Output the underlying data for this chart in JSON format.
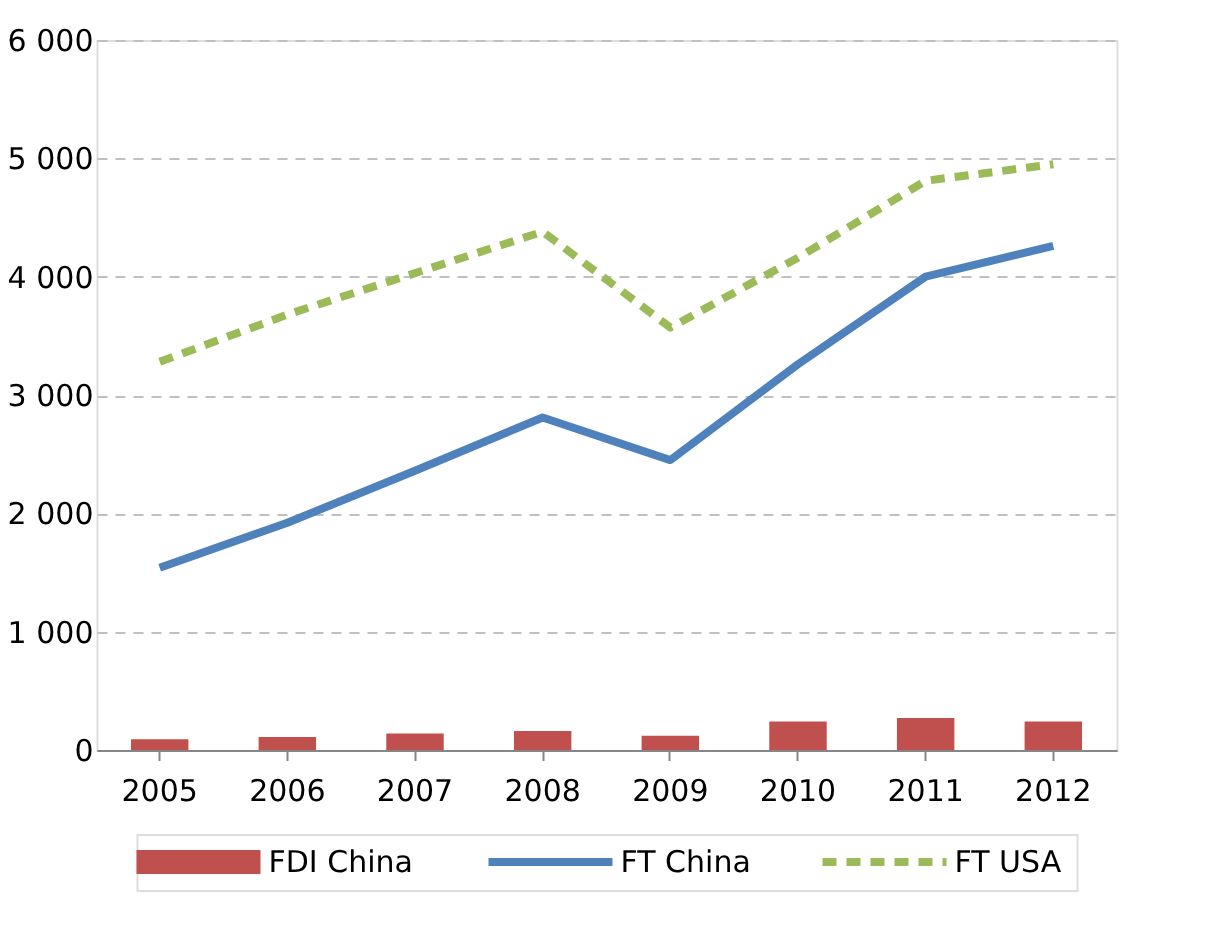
{
  "chart_data": {
    "type": "bar",
    "categories": [
      "2005",
      "2006",
      "2007",
      "2008",
      "2009",
      "2010",
      "2011",
      "2012"
    ],
    "series": [
      {
        "name": "FDI China",
        "color": "#c0504d",
        "values": [
          90,
          110,
          140,
          160,
          120,
          240,
          270,
          240
        ]
      },
      {
        "name": "FT China",
        "type": "line",
        "color": "#4f81bd",
        "line_style": "solid",
        "values": [
          1540,
          1920,
          2360,
          2810,
          2450,
          3260,
          4000,
          4260
        ]
      },
      {
        "name": "FT USA",
        "type": "line",
        "color": "#9bbb59",
        "line_style": "dashed",
        "values": [
          3280,
          3680,
          4030,
          4380,
          3570,
          4160,
          4810,
          4950
        ]
      }
    ],
    "ylim": [
      0,
      6000
    ],
    "yticks": [
      {
        "value": 0,
        "label": "0"
      },
      {
        "value": 1000,
        "label": "1 000"
      },
      {
        "value": 2000,
        "label": "2 000"
      },
      {
        "value": 3000,
        "label": "3 000"
      },
      {
        "value": 4000,
        "label": "4 000"
      },
      {
        "value": 5000,
        "label": "5 000"
      },
      {
        "value": 6000,
        "label": "6 000"
      }
    ],
    "grid": "y",
    "legend": "bottom",
    "marker": "none"
  }
}
